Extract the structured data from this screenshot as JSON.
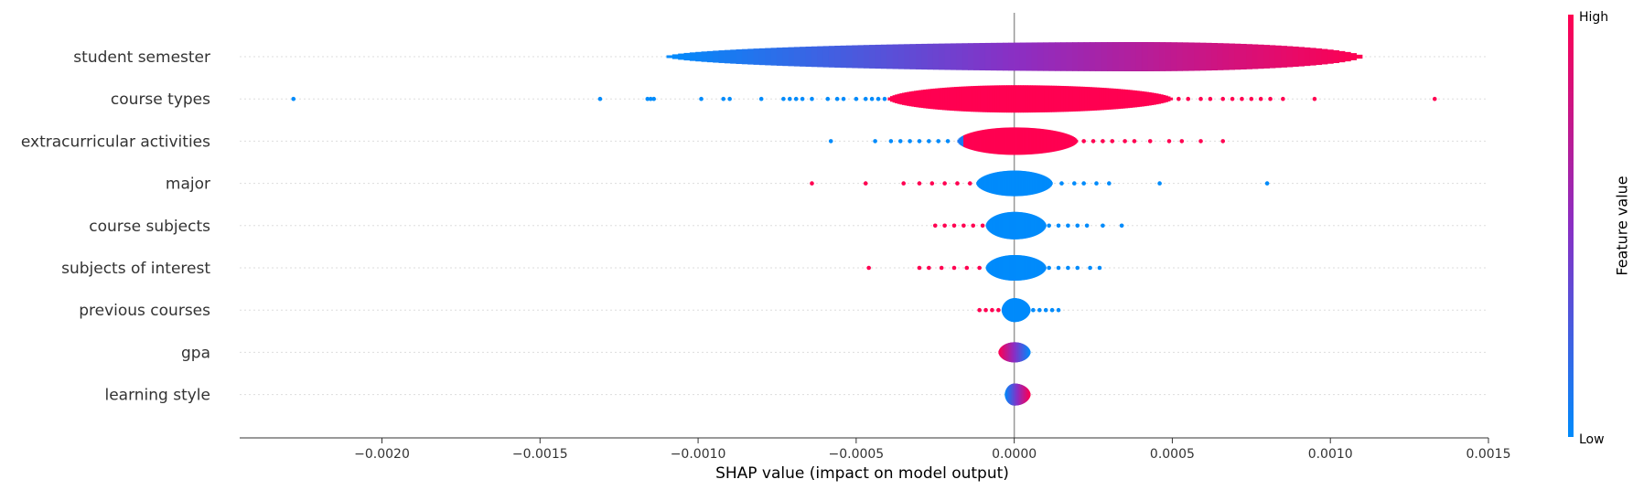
{
  "chart_data": {
    "type": "scatter",
    "subtype": "shap-violin-summary",
    "title": "",
    "xlabel": "SHAP value (impact on model output)",
    "ylabel": "",
    "xlim": [
      -0.00245,
      0.0015
    ],
    "xticks": [
      -0.002,
      -0.0015,
      -0.001,
      -0.0005,
      0.0,
      0.0005,
      0.001,
      0.0015
    ],
    "xtick_labels": [
      "−0.0020",
      "−0.0015",
      "−0.0010",
      "−0.0005",
      "0.0000",
      "0.0005",
      "0.0010",
      "0.0015"
    ],
    "zero_line": 0.0,
    "colorbar": {
      "title": "Feature value",
      "high_label": "High",
      "low_label": "Low",
      "low_color": "#008bfb",
      "high_color": "#ff0051"
    },
    "features": [
      {
        "name": "student semester",
        "body": {
          "min": -0.0011,
          "max": 0.0011,
          "peak": 0.0004,
          "maxhw": 16,
          "feature_high_side": "right"
        },
        "points": []
      },
      {
        "name": "course types",
        "body": {
          "min": -0.0004,
          "max": 0.0005,
          "peak": 0.0,
          "maxhw": 15,
          "feature_high_side": "both"
        },
        "points": [
          [
            -0.00228,
            0.0
          ],
          [
            -0.00131,
            0.0
          ],
          [
            -0.00116,
            0.0
          ],
          [
            -0.00115,
            0.0
          ],
          [
            -0.00114,
            0.0
          ],
          [
            -0.00099,
            0.0
          ],
          [
            -0.00092,
            0.0
          ],
          [
            -0.0009,
            0.0
          ],
          [
            -0.0008,
            0.0
          ],
          [
            -0.00073,
            0.0
          ],
          [
            -0.00071,
            0.0
          ],
          [
            -0.00069,
            0.0
          ],
          [
            -0.00067,
            0.0
          ],
          [
            -0.00064,
            0.0
          ],
          [
            -0.00059,
            0.0
          ],
          [
            -0.00056,
            0.0
          ],
          [
            -0.00054,
            0.0
          ],
          [
            -0.0005,
            0.0
          ],
          [
            -0.00047,
            0.0
          ],
          [
            -0.00045,
            0.0
          ],
          [
            -0.00043,
            0.0
          ],
          [
            -0.00041,
            0.0
          ],
          [
            0.00052,
            1.0
          ],
          [
            0.00055,
            1.0
          ],
          [
            0.00059,
            1.0
          ],
          [
            0.00062,
            1.0
          ],
          [
            0.00066,
            1.0
          ],
          [
            0.00069,
            1.0
          ],
          [
            0.00072,
            1.0
          ],
          [
            0.00075,
            1.0
          ],
          [
            0.00078,
            1.0
          ],
          [
            0.00081,
            1.0
          ],
          [
            0.00085,
            1.0
          ],
          [
            0.00095,
            1.0
          ],
          [
            0.00133,
            1.0
          ]
        ]
      },
      {
        "name": "extracurricular activities",
        "body": {
          "min": -0.00018,
          "max": 0.0002,
          "peak": 0.0,
          "maxhw": 15,
          "feature_high_side": "both",
          "low_left_tail": -0.00018
        },
        "points": [
          [
            -0.00058,
            0.0
          ],
          [
            -0.00044,
            0.0
          ],
          [
            -0.00039,
            0.0
          ],
          [
            -0.00036,
            0.0
          ],
          [
            -0.00033,
            0.0
          ],
          [
            -0.0003,
            0.0
          ],
          [
            -0.00027,
            0.0
          ],
          [
            -0.00024,
            0.0
          ],
          [
            -0.00021,
            0.0
          ],
          [
            0.00022,
            1.0
          ],
          [
            0.00025,
            1.0
          ],
          [
            0.00028,
            1.0
          ],
          [
            0.00031,
            1.0
          ],
          [
            0.00035,
            1.0
          ],
          [
            0.00038,
            1.0
          ],
          [
            0.00043,
            1.0
          ],
          [
            0.00049,
            1.0
          ],
          [
            0.00053,
            1.0
          ],
          [
            0.00059,
            1.0
          ],
          [
            0.00066,
            1.0
          ]
        ]
      },
      {
        "name": "major",
        "body": {
          "min": -0.00012,
          "max": 0.00012,
          "peak": 0.0,
          "maxhw": 14,
          "feature_high_side": "none"
        },
        "points": [
          [
            -0.00064,
            1.0
          ],
          [
            -0.00047,
            1.0
          ],
          [
            -0.00035,
            1.0
          ],
          [
            -0.0003,
            1.0
          ],
          [
            -0.00026,
            1.0
          ],
          [
            -0.00022,
            1.0
          ],
          [
            -0.00018,
            1.0
          ],
          [
            -0.00014,
            1.0
          ],
          [
            0.00015,
            0.0
          ],
          [
            0.00019,
            0.0
          ],
          [
            0.00022,
            0.0
          ],
          [
            0.00026,
            0.0
          ],
          [
            0.0003,
            0.0
          ],
          [
            0.00046,
            0.0
          ],
          [
            0.0008,
            0.0
          ]
        ]
      },
      {
        "name": "course subjects",
        "body": {
          "min": -9e-05,
          "max": 0.0001,
          "peak": 0.0,
          "maxhw": 15,
          "feature_high_side": "none"
        },
        "points": [
          [
            -0.00025,
            1.0
          ],
          [
            -0.00022,
            1.0
          ],
          [
            -0.00019,
            1.0
          ],
          [
            -0.00016,
            1.0
          ],
          [
            -0.00013,
            1.0
          ],
          [
            -0.0001,
            1.0
          ],
          [
            0.00011,
            0.0
          ],
          [
            0.00014,
            0.0
          ],
          [
            0.00017,
            0.0
          ],
          [
            0.0002,
            0.0
          ],
          [
            0.00023,
            0.0
          ],
          [
            0.00028,
            0.0
          ],
          [
            0.00034,
            0.0
          ]
        ]
      },
      {
        "name": "subjects of interest",
        "body": {
          "min": -9e-05,
          "max": 0.0001,
          "peak": 0.0,
          "maxhw": 14,
          "feature_high_side": "none"
        },
        "points": [
          [
            -0.00046,
            1.0
          ],
          [
            -0.0003,
            1.0
          ],
          [
            -0.00027,
            1.0
          ],
          [
            -0.00023,
            1.0
          ],
          [
            -0.00019,
            1.0
          ],
          [
            -0.00015,
            1.0
          ],
          [
            -0.00011,
            1.0
          ],
          [
            0.00011,
            0.0
          ],
          [
            0.00014,
            0.0
          ],
          [
            0.00017,
            0.0
          ],
          [
            0.0002,
            0.0
          ],
          [
            0.00024,
            0.0
          ],
          [
            0.00027,
            0.0
          ]
        ]
      },
      {
        "name": "previous courses",
        "body": {
          "min": -4e-05,
          "max": 5e-05,
          "peak": 0.0,
          "maxhw": 13,
          "feature_high_side": "none"
        },
        "points": [
          [
            -0.00011,
            1.0
          ],
          [
            -9e-05,
            1.0
          ],
          [
            -7e-05,
            1.0
          ],
          [
            -5e-05,
            1.0
          ],
          [
            6e-05,
            0.0
          ],
          [
            8e-05,
            0.0
          ],
          [
            0.0001,
            0.0
          ],
          [
            0.00012,
            0.0
          ],
          [
            0.00014,
            0.0
          ]
        ]
      },
      {
        "name": "gpa",
        "body": {
          "min": -5e-05,
          "max": 5e-05,
          "peak": 0.0,
          "maxhw": 11,
          "feature_high_side": "left"
        },
        "points": []
      },
      {
        "name": "learning style",
        "body": {
          "min": -3e-05,
          "max": 5e-05,
          "peak": 0.0,
          "maxhw": 12,
          "feature_high_side": "right"
        },
        "points": []
      }
    ]
  }
}
